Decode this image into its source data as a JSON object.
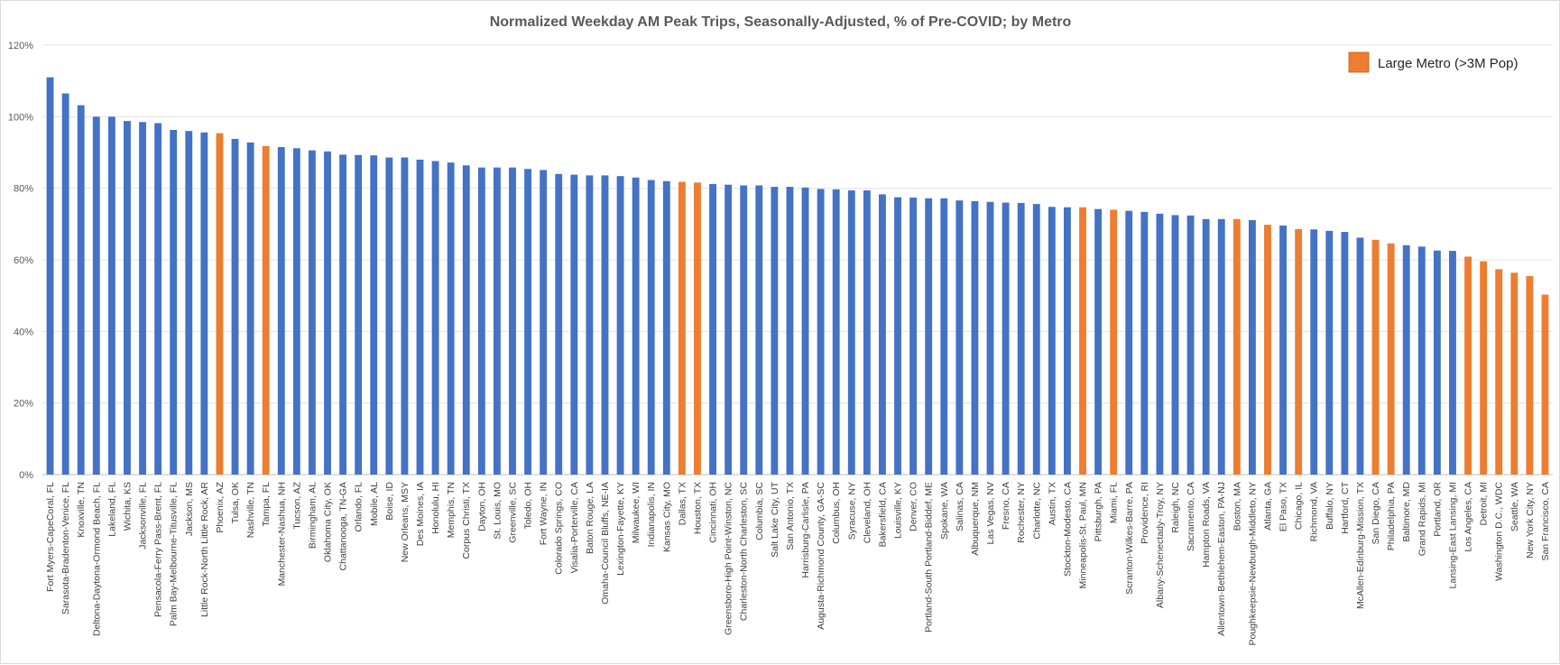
{
  "chart_data": {
    "type": "bar",
    "title": "Normalized Weekday AM Peak Trips, Seasonally-Adjusted, % of Pre-COVID; by Metro",
    "xlabel": "",
    "ylabel": "",
    "ylim": [
      0,
      120
    ],
    "yticks": [
      "0%",
      "20%",
      "40%",
      "60%",
      "80%",
      "100%",
      "120%"
    ],
    "grid": true,
    "legend_position": "top-right",
    "colors": {
      "default": "#4472C4",
      "large_metro": "#ED7D31"
    },
    "legend": [
      {
        "label": "Large Metro (>3M Pop)",
        "color": "#ED7D31"
      }
    ],
    "categories": [
      "Fort Myers-CapeCoral, FL",
      "Sarasota-Bradenton-Venice, FL",
      "Knoxville, TN",
      "Deltona-Daytona-Ormond Beach, FL",
      "Lakeland, FL",
      "Wichita, KS",
      "Jacksonville, FL",
      "Pensacola-Ferry Pass-Brent, FL",
      "Palm Bay-Melbourne-Titusville, FL",
      "Jackson, MS",
      "Little Rock-North Little Rock, AR",
      "Phoenix, AZ",
      "Tulsa, OK",
      "Nashville, TN",
      "Tampa, FL",
      "Manchester-Nashua, NH",
      "Tucson, AZ",
      "Birmingham, AL",
      "Oklahoma City, OK",
      "Chattanooga, TN-GA",
      "Orlando, FL",
      "Mobile, AL",
      "Boise, ID",
      "New Orleans, MSY",
      "Des Moines, IA",
      "Honolulu, HI",
      "Memphis, TN",
      "Corpus Christi, TX",
      "Dayton, OH",
      "St. Louis, MO",
      "Greenville, SC",
      "Toledo, OH",
      "Fort Wayne, IN",
      "Colorado Springs, CO",
      "Visalia-Porterville, CA",
      "Baton Rouge, LA",
      "Omaha-Council Bluffs, NE-IA",
      "Lexington-Fayette, KY",
      "Milwaukee, WI",
      "Indianapolis, IN",
      "Kansas City, MO",
      "Dallas, TX",
      "Houston, TX",
      "Cincinnati, OH",
      "Greensboro-High Point-Winston, NC",
      "Charleston-North Charleston, SC",
      "Columbia, SC",
      "Salt Lake City, UT",
      "San Antonio, TX",
      "Harrisburg-Carlisle, PA",
      "Augusta-Richmond County, GA-SC",
      "Columbus, OH",
      "Syracuse, NY",
      "Cleveland, OH",
      "Bakersfield, CA",
      "Louisville, KY",
      "Denver, CO",
      "Portland-South Portland-Biddef, ME",
      "Spokane, WA",
      "Salinas, CA",
      "Albuquerque, NM",
      "Las Vegas, NV",
      "Fresno, CA",
      "Rochester, NY",
      "Charlotte, NC",
      "Austin, TX",
      "Stockton-Modesto, CA",
      "Minneapolis-St. Paul, MN",
      "Pittsburgh, PA",
      "Miami, FL",
      "Scranton-Wilkes-Barre, PA",
      "Providence, RI",
      "Albany-Schenectady-Troy, NY",
      "Raleigh, NC",
      "Sacramento, CA",
      "Hampton Roads, VA",
      "Allentown-Bethlehem-Easton, PA-NJ",
      "Boston, MA",
      "Poughkeepsie-Newburgh-Middleto, NY",
      "Atlanta, GA",
      "El Paso, TX",
      "Chicago, IL",
      "Richmond, VA",
      "Buffalo, NY",
      "Hartford, CT",
      "McAllen-Edinburg-Mission, TX",
      "San Diego, CA",
      "Philadelphia, PA",
      "Baltimore, MD",
      "Grand Rapids, MI",
      "Portland, OR",
      "Lansing-East Lansing, MI",
      "Los Angeles, CA",
      "Detroit, MI",
      "Washington D.C., WDC",
      "Seattle, WA",
      "New York City, NY",
      "San Francisco, CA"
    ],
    "series": [
      {
        "values": [
          111,
          106.5,
          103.2,
          100,
          100,
          98.8,
          98.5,
          98.2,
          96.3,
          96,
          95.6,
          95.4,
          93.8,
          92.8,
          91.8,
          91.5,
          91.2,
          90.6,
          90.3,
          89.4,
          89.3,
          89.2,
          88.6,
          88.6,
          88,
          87.6,
          87.2,
          86.4,
          85.8,
          85.8,
          85.8,
          85.4,
          85.1,
          84,
          83.8,
          83.6,
          83.6,
          83.4,
          83,
          82.3,
          82,
          81.8,
          81.6,
          81.2,
          81,
          80.8,
          80.8,
          80.4,
          80.4,
          80.2,
          79.8,
          79.7,
          79.4,
          79.4,
          78.3,
          77.5,
          77.4,
          77.2,
          77.2,
          76.6,
          76.4,
          76.2,
          76,
          75.9,
          75.6,
          74.8,
          74.7,
          74.7,
          74.2,
          74,
          73.7,
          73.4,
          72.9,
          72.5,
          72.4,
          71.4,
          71.4,
          71.4,
          71.1,
          69.8,
          69.6,
          68.6,
          68.5,
          68.1,
          67.8,
          66.2,
          65.6,
          64.6,
          64.1,
          63.7,
          62.6,
          62.5,
          60.9,
          59.6,
          57.4,
          56.4,
          55.5,
          50.3
        ],
        "large_metro": [
          false,
          false,
          false,
          false,
          false,
          false,
          false,
          false,
          false,
          false,
          false,
          true,
          false,
          false,
          true,
          false,
          false,
          false,
          false,
          false,
          false,
          false,
          false,
          false,
          false,
          false,
          false,
          false,
          false,
          false,
          false,
          false,
          false,
          false,
          false,
          false,
          false,
          false,
          false,
          false,
          false,
          true,
          true,
          false,
          false,
          false,
          false,
          false,
          false,
          false,
          false,
          false,
          false,
          false,
          false,
          false,
          false,
          false,
          false,
          false,
          false,
          false,
          false,
          false,
          false,
          false,
          false,
          true,
          false,
          true,
          false,
          false,
          false,
          false,
          false,
          false,
          false,
          true,
          false,
          true,
          false,
          true,
          false,
          false,
          false,
          false,
          true,
          true,
          false,
          false,
          false,
          false,
          true,
          true,
          true,
          true,
          true,
          true
        ]
      }
    ]
  }
}
